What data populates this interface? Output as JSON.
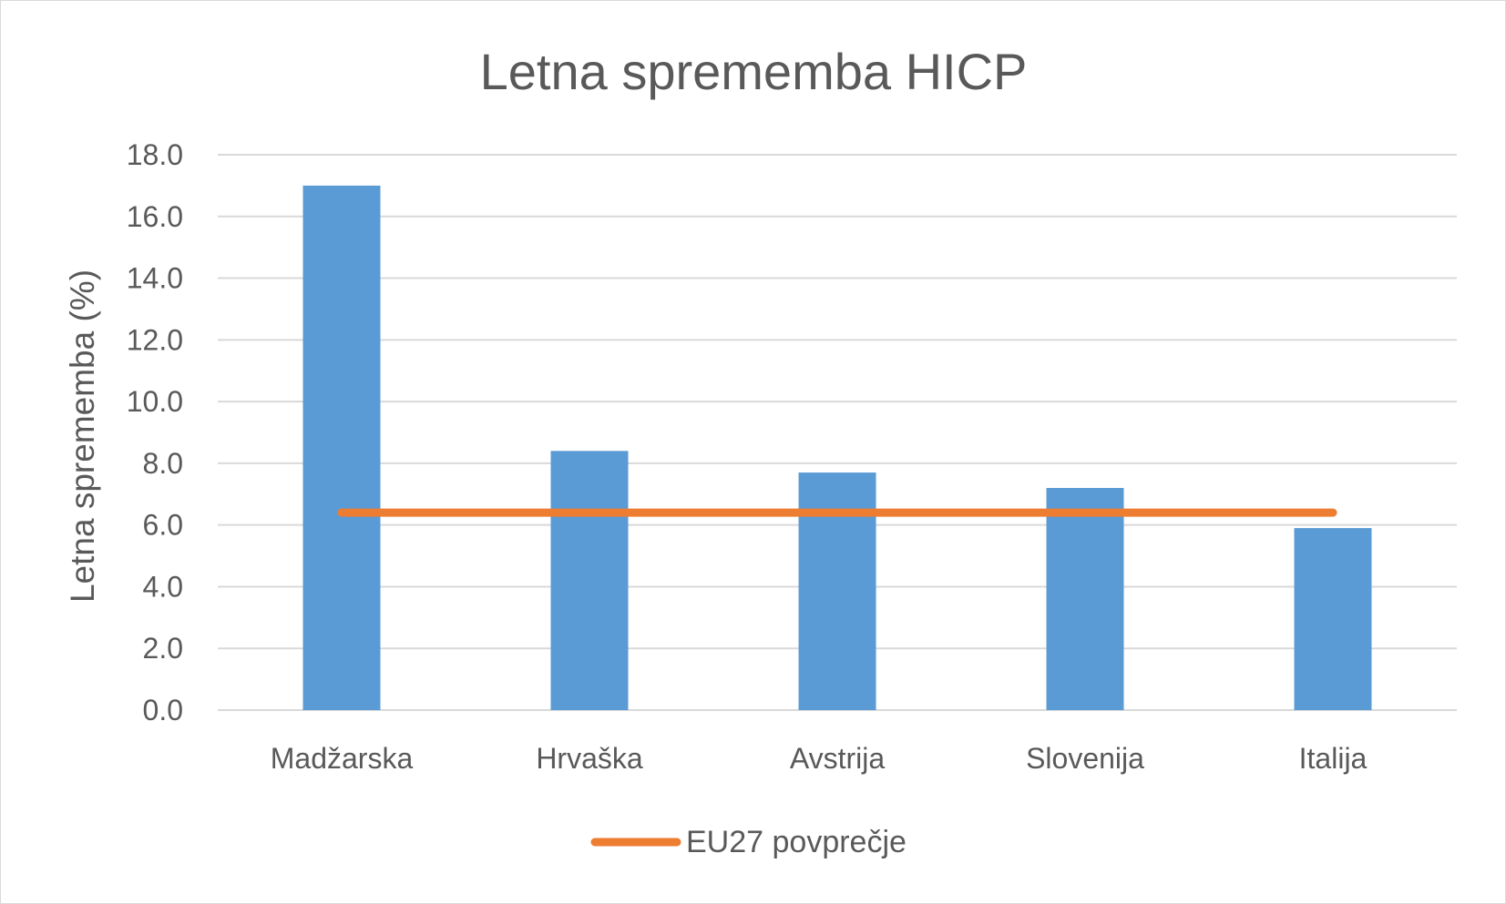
{
  "chart_data": {
    "type": "bar",
    "title": "Letna sprememba HICP",
    "xlabel": "",
    "ylabel": "Letna sprememba (%)",
    "categories": [
      "Madžarska",
      "Hrvaška",
      "Avstrija",
      "Slovenija",
      "Italija"
    ],
    "series": [
      {
        "type": "bar",
        "values": [
          17.0,
          8.4,
          7.7,
          7.2,
          5.9
        ],
        "color": "#5b9bd5"
      },
      {
        "name": "EU27 povprečje",
        "type": "line",
        "values": [
          6.4,
          6.4,
          6.4,
          6.4,
          6.4
        ],
        "color": "#ed7d31"
      }
    ],
    "ylim": [
      0,
      18
    ],
    "yticks": [
      "0.0",
      "2.0",
      "4.0",
      "6.0",
      "8.0",
      "10.0",
      "12.0",
      "14.0",
      "16.0",
      "18.0"
    ],
    "grid": true,
    "legend_position": "bottom"
  }
}
